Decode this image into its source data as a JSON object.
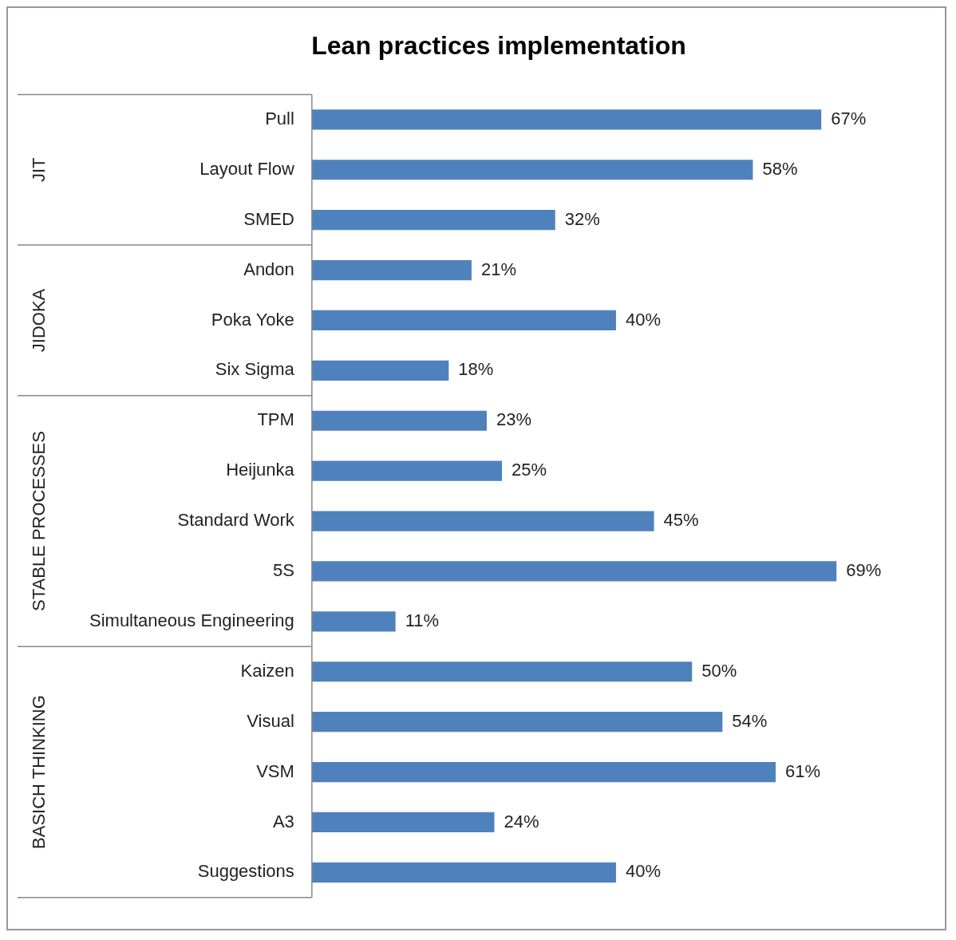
{
  "chart_data": {
    "type": "bar",
    "orientation": "horizontal",
    "title": "Lean practices implementation",
    "categories": [
      "Pull",
      "Layout Flow",
      "SMED",
      "Andon",
      "Poka Yoke",
      "Six Sigma",
      "TPM",
      "Heijunka",
      "Standard Work",
      "5S",
      "Simultaneous Engineering",
      "Kaizen",
      "Visual",
      "VSM",
      "A3",
      "Suggestions"
    ],
    "values": [
      67,
      58,
      32,
      21,
      40,
      18,
      23,
      25,
      45,
      69,
      11,
      50,
      54,
      61,
      24,
      40
    ],
    "value_labels": [
      "67%",
      "58%",
      "32%",
      "21%",
      "40%",
      "18%",
      "23%",
      "25%",
      "45%",
      "69%",
      "11%",
      "50%",
      "54%",
      "61%",
      "24%",
      "40%"
    ],
    "color": "#4f81bd",
    "annotations": [
      "JIT",
      "JIDOKA",
      "STABLE PROCESSES",
      "BASICH THINKING"
    ]
  }
}
